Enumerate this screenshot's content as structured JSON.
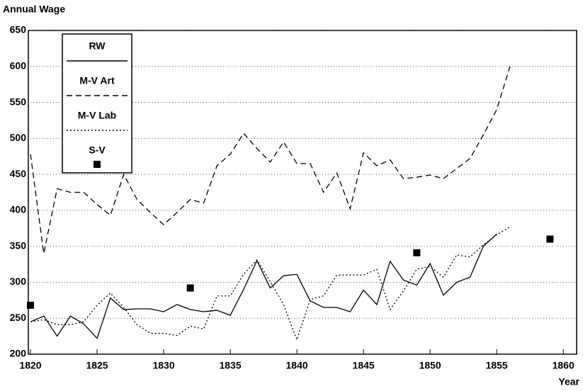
{
  "chart_data": {
    "type": "line",
    "ylabel": "Annual Wage",
    "xlabel": "Year",
    "xlim": [
      1820,
      1861
    ],
    "xticks": [
      1820,
      1825,
      1830,
      1835,
      1840,
      1845,
      1850,
      1855,
      1860
    ],
    "ylim": [
      200,
      650
    ],
    "yticks": [
      200,
      250,
      300,
      350,
      400,
      450,
      500,
      550,
      600,
      650
    ],
    "grid": true,
    "legend": "upper left",
    "series": [
      {
        "name": "RW",
        "color": "#000000",
        "style": "solid",
        "x": [
          1820,
          1821,
          1822,
          1823,
          1824,
          1825,
          1826,
          1827,
          1828,
          1829,
          1830,
          1831,
          1832,
          1833,
          1834,
          1835,
          1836,
          1837,
          1838,
          1839,
          1840,
          1841,
          1842,
          1843,
          1844,
          1845,
          1846,
          1847,
          1848,
          1849,
          1850,
          1851,
          1852,
          1853,
          1854,
          1855
        ],
        "values": [
          245,
          253,
          225,
          253,
          242,
          222,
          278,
          262,
          263,
          263,
          259,
          269,
          262,
          259,
          261,
          254,
          290,
          330,
          292,
          309,
          311,
          274,
          265,
          265,
          259,
          289,
          269,
          329,
          303,
          296,
          326,
          282,
          300,
          307,
          350,
          367
        ]
      },
      {
        "name": "M-V Art",
        "color": "#000000",
        "style": "dashed",
        "x": [
          1820,
          1821,
          1822,
          1823,
          1824,
          1825,
          1826,
          1827,
          1828,
          1829,
          1830,
          1831,
          1832,
          1833,
          1834,
          1835,
          1836,
          1837,
          1838,
          1839,
          1840,
          1841,
          1842,
          1843,
          1844,
          1845,
          1846,
          1847,
          1848,
          1849,
          1850,
          1851,
          1852,
          1853,
          1854,
          1855,
          1856
        ],
        "values": [
          478,
          340,
          430,
          425,
          425,
          408,
          393,
          450,
          415,
          397,
          380,
          397,
          415,
          410,
          462,
          478,
          507,
          486,
          467,
          495,
          465,
          465,
          425,
          452,
          402,
          480,
          462,
          470,
          444,
          446,
          449,
          444,
          458,
          472,
          505,
          540,
          600
        ]
      },
      {
        "name": "M-V Lab",
        "color": "#000000",
        "style": "dotted",
        "x": [
          1820,
          1821,
          1822,
          1823,
          1824,
          1825,
          1826,
          1827,
          1828,
          1829,
          1830,
          1831,
          1832,
          1833,
          1834,
          1835,
          1836,
          1837,
          1838,
          1839,
          1840,
          1841,
          1842,
          1843,
          1844,
          1845,
          1846,
          1847,
          1848,
          1849,
          1850,
          1851,
          1852,
          1853,
          1854,
          1855,
          1856
        ],
        "values": [
          245,
          248,
          241,
          241,
          245,
          268,
          285,
          265,
          241,
          229,
          229,
          226,
          239,
          235,
          281,
          281,
          311,
          331,
          301,
          269,
          220,
          276,
          281,
          310,
          310,
          310,
          318,
          262,
          288,
          318,
          322,
          307,
          338,
          335,
          352,
          366,
          377
        ]
      },
      {
        "name": "S-V",
        "color": "#000000",
        "style": "square",
        "x": [
          1820,
          1825,
          1832,
          1849,
          1859
        ],
        "values": [
          268,
          463,
          292,
          341,
          360
        ]
      }
    ]
  }
}
